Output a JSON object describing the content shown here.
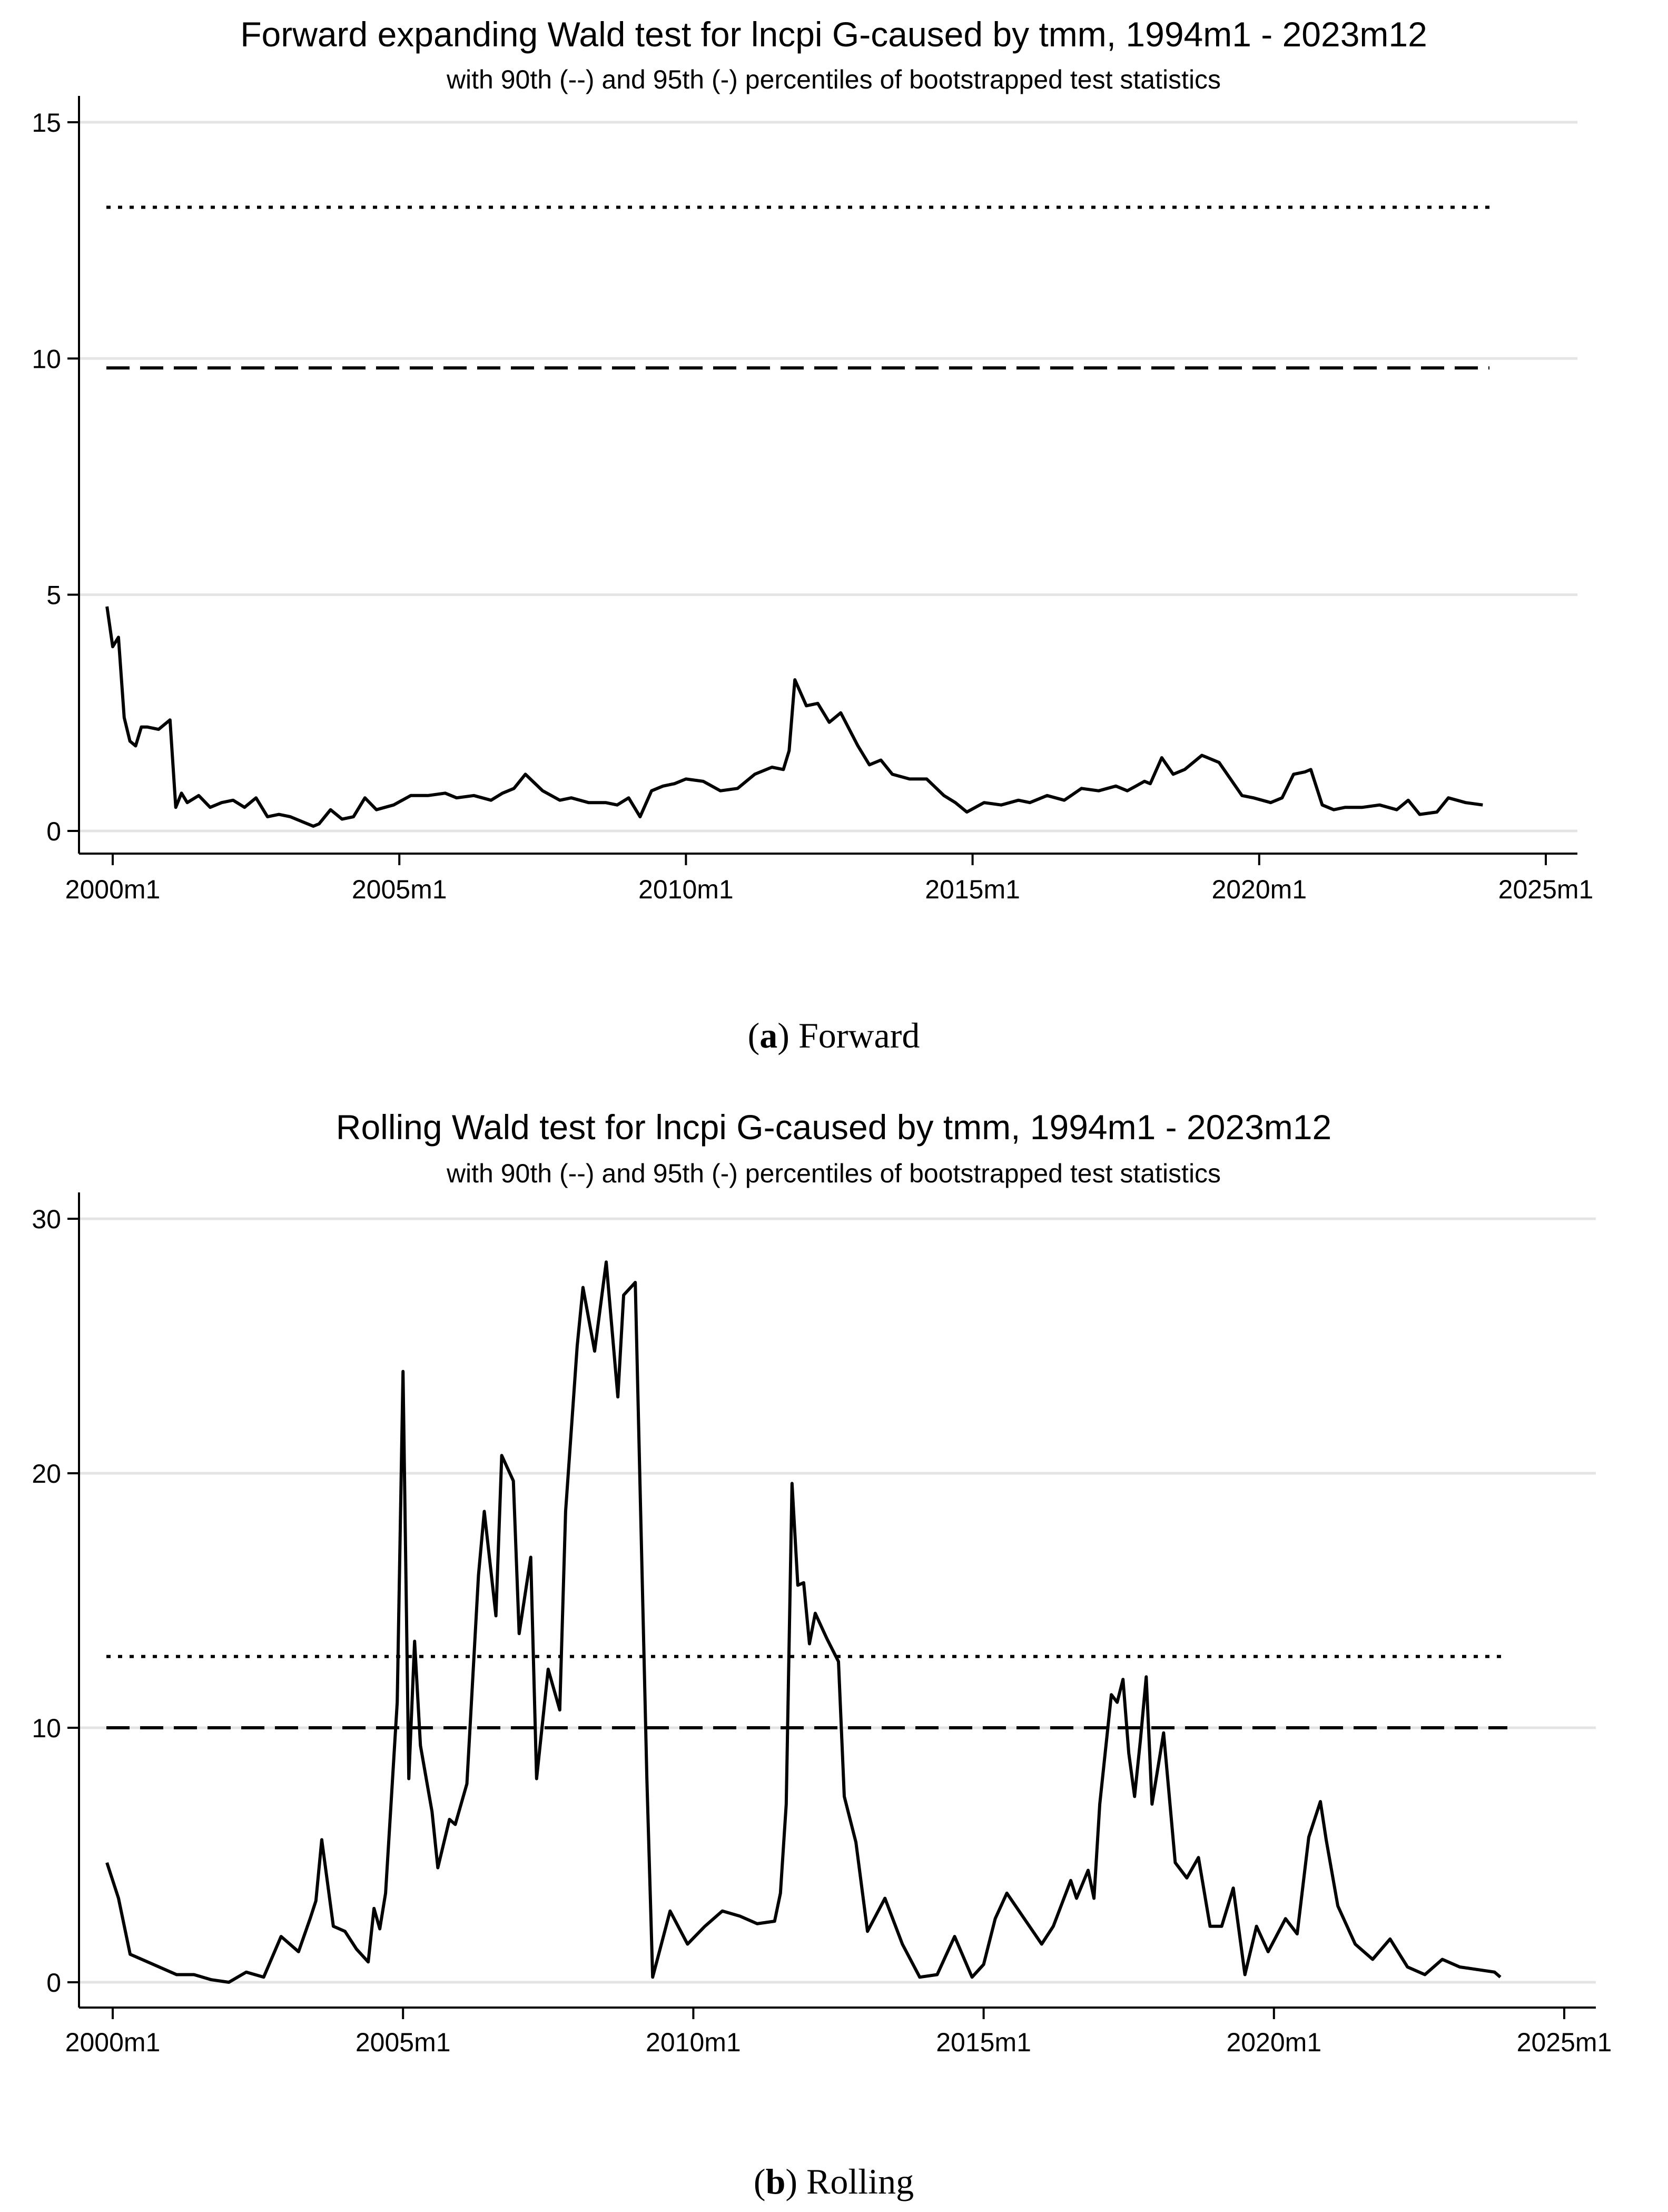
{
  "figure": {
    "caption_a": {
      "letter": "a",
      "text": "Forward"
    },
    "caption_b": {
      "letter": "b",
      "text": "Rolling"
    }
  },
  "chart_data": [
    {
      "id": "forward",
      "type": "line",
      "title": "Forward expanding Wald test for lncpi G-caused by tmm, 1994m1 - 2023m12",
      "subtitle": "with 90th (--) and 95th (-) percentiles of bootstrapped test statistics",
      "xlabel": "",
      "ylabel": "",
      "xlim": [
        2000.0,
        2025.0
      ],
      "ylim": [
        0,
        15
      ],
      "x_ticks": [
        2000,
        2005,
        2010,
        2015,
        2020,
        2025
      ],
      "x_tick_labels": [
        "2000m1",
        "2005m1",
        "2010m1",
        "2015m1",
        "2020m1",
        "2025m1"
      ],
      "y_ticks": [
        0,
        5,
        10,
        15
      ],
      "y_tick_labels": [
        "0",
        "5",
        "10",
        "15"
      ],
      "grid": true,
      "reference_lines": [
        {
          "name": "95th percentile",
          "style": "dotted",
          "value": 13.2
        },
        {
          "name": "90th percentile",
          "style": "dashed",
          "value": 9.8
        }
      ],
      "series": [
        {
          "name": "Wald test statistic",
          "x": [
            1999.9,
            2000.0,
            2000.1,
            2000.2,
            2000.3,
            2000.4,
            2000.5,
            2000.6,
            2000.8,
            2001.0,
            2001.1,
            2001.2,
            2001.3,
            2001.5,
            2001.7,
            2001.9,
            2002.1,
            2002.3,
            2002.5,
            2002.7,
            2002.9,
            2003.1,
            2003.3,
            2003.5,
            2003.6,
            2003.8,
            2004.0,
            2004.2,
            2004.4,
            2004.6,
            2004.9,
            2005.2,
            2005.5,
            2005.8,
            2006.0,
            2006.3,
            2006.6,
            2006.8,
            2007.0,
            2007.2,
            2007.5,
            2007.8,
            2008.0,
            2008.3,
            2008.6,
            2008.8,
            2009.0,
            2009.2,
            2009.4,
            2009.6,
            2009.8,
            2010.0,
            2010.3,
            2010.6,
            2010.9,
            2011.2,
            2011.5,
            2011.7,
            2011.8,
            2011.9,
            2012.1,
            2012.3,
            2012.5,
            2012.7,
            2013.0,
            2013.2,
            2013.4,
            2013.6,
            2013.9,
            2014.2,
            2014.5,
            2014.7,
            2014.9,
            2015.2,
            2015.5,
            2015.8,
            2016.0,
            2016.3,
            2016.6,
            2016.9,
            2017.2,
            2017.5,
            2017.7,
            2018.0,
            2018.1,
            2018.3,
            2018.5,
            2018.7,
            2019.0,
            2019.3,
            2019.5,
            2019.7,
            2019.9,
            2020.2,
            2020.4,
            2020.6,
            2020.8,
            2020.9,
            2021.1,
            2021.3,
            2021.5,
            2021.8,
            2022.1,
            2022.4,
            2022.6,
            2022.8,
            2023.1,
            2023.3,
            2023.6,
            2023.9
          ],
          "y": [
            4.75,
            3.9,
            4.1,
            2.4,
            1.9,
            1.8,
            2.2,
            2.2,
            2.15,
            2.35,
            0.5,
            0.8,
            0.6,
            0.75,
            0.5,
            0.6,
            0.65,
            0.5,
            0.7,
            0.3,
            0.35,
            0.3,
            0.2,
            0.1,
            0.15,
            0.45,
            0.25,
            0.3,
            0.7,
            0.45,
            0.55,
            0.75,
            0.75,
            0.8,
            0.7,
            0.75,
            0.65,
            0.8,
            0.9,
            1.2,
            0.85,
            0.65,
            0.7,
            0.6,
            0.6,
            0.55,
            0.7,
            0.3,
            0.85,
            0.95,
            1.0,
            1.1,
            1.05,
            0.85,
            0.9,
            1.2,
            1.35,
            1.3,
            1.7,
            3.2,
            2.65,
            2.7,
            2.3,
            2.5,
            1.8,
            1.4,
            1.5,
            1.2,
            1.1,
            1.1,
            0.75,
            0.6,
            0.4,
            0.6,
            0.55,
            0.65,
            0.6,
            0.75,
            0.65,
            0.9,
            0.85,
            0.95,
            0.85,
            1.05,
            1.0,
            1.55,
            1.2,
            1.3,
            1.6,
            1.45,
            1.1,
            0.75,
            0.7,
            0.6,
            0.7,
            1.2,
            1.25,
            1.3,
            0.55,
            0.45,
            0.5,
            0.5,
            0.55,
            0.45,
            0.65,
            0.35,
            0.4,
            0.7,
            0.6,
            0.55
          ]
        }
      ]
    },
    {
      "id": "rolling",
      "type": "line",
      "title": "Rolling Wald test for lncpi G-caused by tmm, 1994m1 - 2023m12",
      "subtitle": "with 90th (--) and 95th (-) percentiles of bootstrapped test statistics",
      "xlabel": "",
      "ylabel": "",
      "xlim": [
        2000.0,
        2025.0
      ],
      "ylim": [
        0,
        30
      ],
      "x_ticks": [
        2000,
        2005,
        2010,
        2015,
        2020,
        2025
      ],
      "x_tick_labels": [
        "2000m1",
        "2005m1",
        "2010m1",
        "2015m1",
        "2020m1",
        "2025m1"
      ],
      "y_ticks": [
        0,
        10,
        20,
        30
      ],
      "y_tick_labels": [
        "0",
        "10",
        "20",
        "30"
      ],
      "grid": true,
      "reference_lines": [
        {
          "name": "95th percentile",
          "style": "dotted",
          "value": 12.8
        },
        {
          "name": "90th percentile",
          "style": "dashed",
          "value": 10.0
        }
      ],
      "series": [
        {
          "name": "Wald test statistic",
          "x": [
            1999.9,
            2000.1,
            2000.3,
            2000.5,
            2000.8,
            2001.1,
            2001.4,
            2001.7,
            2002.0,
            2002.3,
            2002.6,
            2002.9,
            2003.2,
            2003.4,
            2003.5,
            2003.6,
            2003.8,
            2004.0,
            2004.2,
            2004.4,
            2004.5,
            2004.6,
            2004.7,
            2004.9,
            2005.0,
            2005.1,
            2005.2,
            2005.3,
            2005.5,
            2005.6,
            2005.8,
            2005.9,
            2006.1,
            2006.3,
            2006.4,
            2006.6,
            2006.7,
            2006.9,
            2007.0,
            2007.2,
            2007.3,
            2007.5,
            2007.7,
            2007.8,
            2008.0,
            2008.1,
            2008.3,
            2008.5,
            2008.7,
            2008.8,
            2009.0,
            2009.2,
            2009.3,
            2009.6,
            2009.9,
            2010.2,
            2010.5,
            2010.8,
            2011.1,
            2011.4,
            2011.5,
            2011.6,
            2011.7,
            2011.8,
            2011.9,
            2012.0,
            2012.1,
            2012.3,
            2012.5,
            2012.6,
            2012.8,
            2013.0,
            2013.3,
            2013.6,
            2013.9,
            2014.2,
            2014.5,
            2014.8,
            2015.0,
            2015.2,
            2015.4,
            2015.7,
            2016.0,
            2016.2,
            2016.5,
            2016.6,
            2016.8,
            2016.9,
            2017.0,
            2017.2,
            2017.3,
            2017.4,
            2017.5,
            2017.6,
            2017.7,
            2017.8,
            2017.9,
            2018.1,
            2018.3,
            2018.5,
            2018.7,
            2018.9,
            2019.1,
            2019.3,
            2019.5,
            2019.7,
            2019.9,
            2020.2,
            2020.4,
            2020.6,
            2020.8,
            2020.9,
            2021.1,
            2021.4,
            2021.7,
            2022.0,
            2022.3,
            2022.6,
            2022.9,
            2023.2,
            2023.5,
            2023.8,
            2023.9
          ],
          "y": [
            4.7,
            3.3,
            1.1,
            0.9,
            0.6,
            0.3,
            0.3,
            0.1,
            0.0,
            0.4,
            0.2,
            1.8,
            1.2,
            2.5,
            3.2,
            5.6,
            2.2,
            2.0,
            1.3,
            0.8,
            2.9,
            2.1,
            3.5,
            11.0,
            24.0,
            8.0,
            13.4,
            9.3,
            6.7,
            4.5,
            6.4,
            6.2,
            7.8,
            16.0,
            18.5,
            14.4,
            20.7,
            19.7,
            13.7,
            16.7,
            8.0,
            12.3,
            10.7,
            18.5,
            25.0,
            27.3,
            24.8,
            28.3,
            23.0,
            27.0,
            27.5,
            8.0,
            0.2,
            2.8,
            1.5,
            2.2,
            2.8,
            2.6,
            2.3,
            2.4,
            3.5,
            7.0,
            19.6,
            15.6,
            15.7,
            13.3,
            14.5,
            13.5,
            12.6,
            7.3,
            5.5,
            2.0,
            3.3,
            1.5,
            0.2,
            0.3,
            1.8,
            0.2,
            0.7,
            2.5,
            3.5,
            2.5,
            1.5,
            2.2,
            4.0,
            3.3,
            4.4,
            3.3,
            7.0,
            11.3,
            11.0,
            11.9,
            9.0,
            7.3,
            9.5,
            12.0,
            7.0,
            9.8,
            4.7,
            4.1,
            4.9,
            2.2,
            2.2,
            3.7,
            0.3,
            2.2,
            1.2,
            2.5,
            1.9,
            5.7,
            7.1,
            5.6,
            3.0,
            1.5,
            0.9,
            1.7,
            0.6,
            0.3,
            0.9,
            0.6,
            0.5,
            0.4,
            0.2
          ]
        }
      ]
    }
  ]
}
